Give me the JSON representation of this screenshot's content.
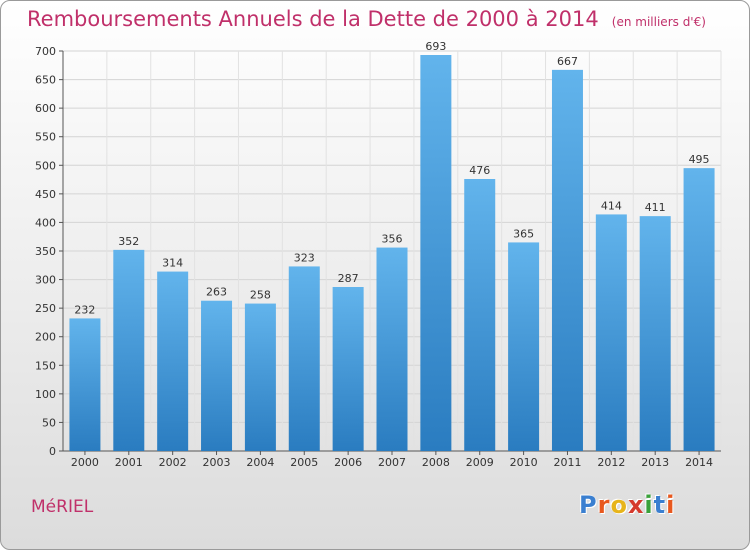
{
  "title": "Remboursements Annuels de la Dette de 2000 à 2014",
  "unit": "(en milliers d'€)",
  "commune": "MéRIEL",
  "logo": {
    "text": "Proxiti",
    "letters": [
      {
        "char": "P",
        "color": "#3a7fd0"
      },
      {
        "char": "r",
        "color": "#e8581e"
      },
      {
        "char": "o",
        "color": "#e7b41a"
      },
      {
        "char": "x",
        "color": "#d53a2d"
      },
      {
        "char": "i",
        "color": "#3aa13a"
      },
      {
        "char": "t",
        "color": "#3a7fd0"
      },
      {
        "char": "i",
        "color": "#e8581e"
      }
    ]
  },
  "chart_data": {
    "type": "bar",
    "categories": [
      "2000",
      "2001",
      "2002",
      "2003",
      "2004",
      "2005",
      "2006",
      "2007",
      "2008",
      "2009",
      "2010",
      "2011",
      "2012",
      "2013",
      "2014"
    ],
    "values": [
      232,
      352,
      314,
      263,
      258,
      323,
      287,
      356,
      693,
      476,
      365,
      667,
      414,
      411,
      495
    ],
    "ylim": [
      0,
      700
    ],
    "yticks": [
      0,
      50,
      100,
      150,
      200,
      250,
      300,
      350,
      400,
      450,
      500,
      550,
      600,
      650,
      700
    ],
    "grid": true,
    "bar_color_top": "#62b4ec",
    "bar_color_bottom": "#2a7cc0",
    "title_color": "#c0306a"
  }
}
